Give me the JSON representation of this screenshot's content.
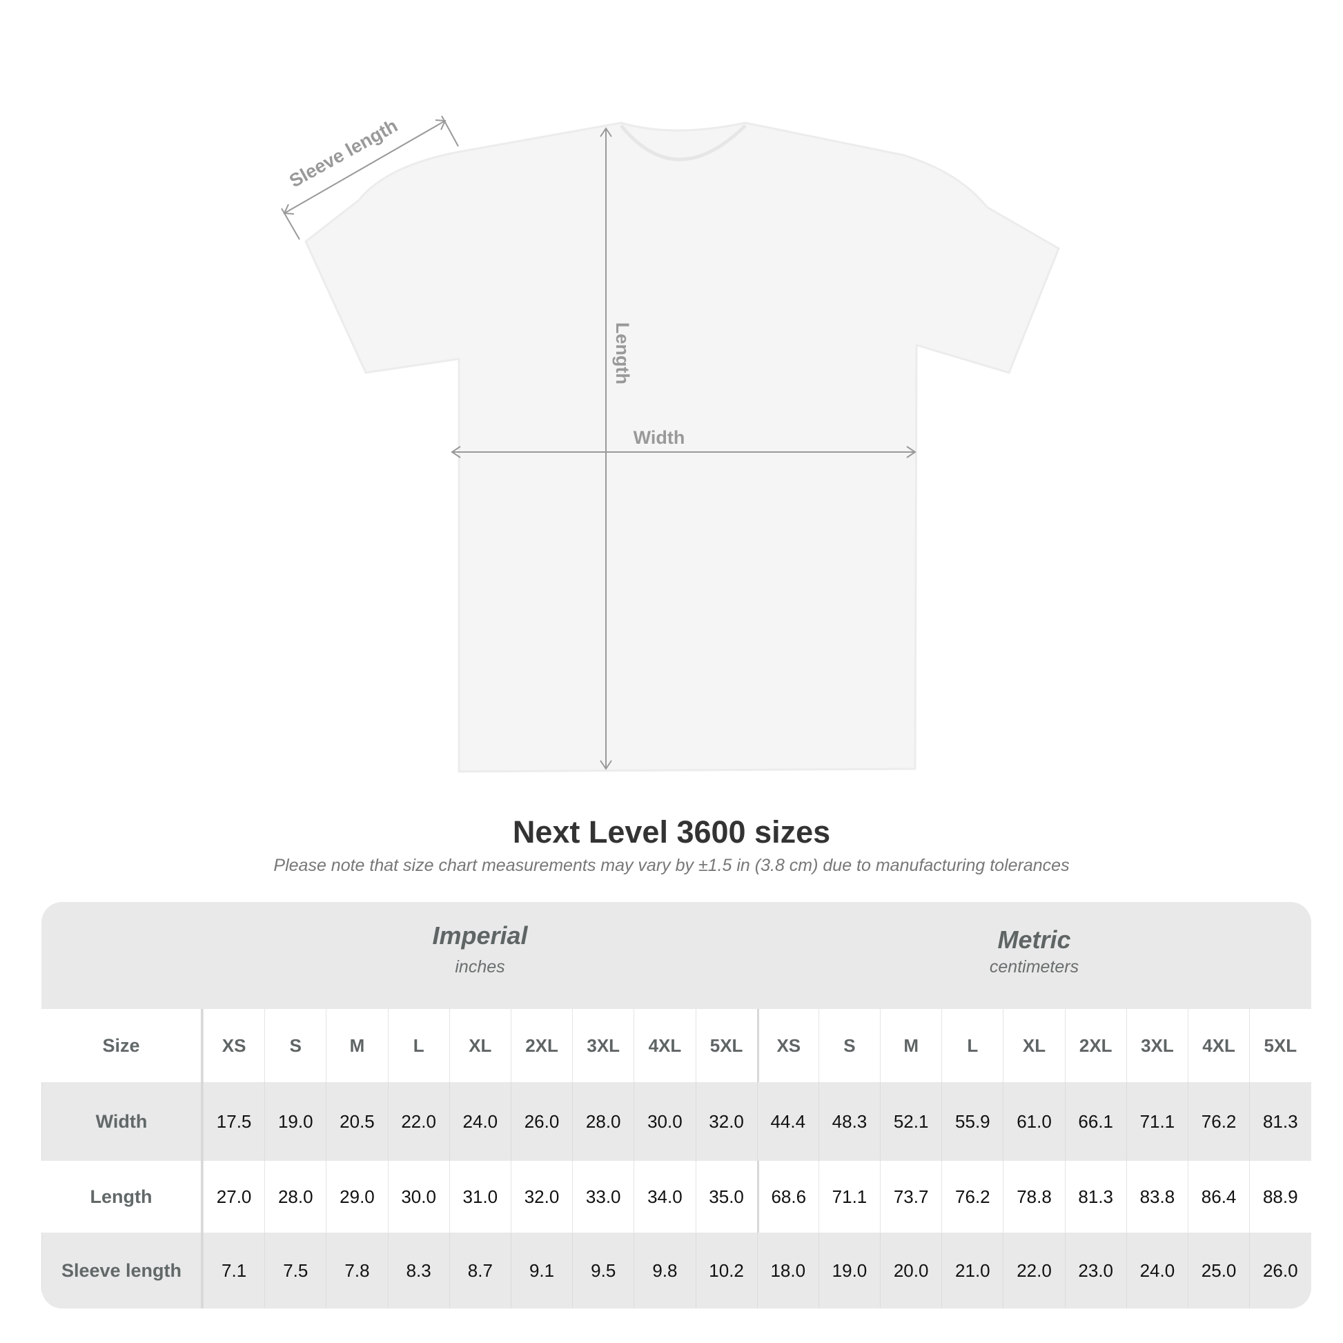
{
  "diagram": {
    "sleeve_label": "Sleeve length",
    "length_label": "Length",
    "width_label": "Width"
  },
  "title": "Next Level 3600 sizes",
  "subtitle": "Please note that size chart measurements may vary by ±1.5 in (3.8 cm) due to manufacturing tolerances",
  "systems": [
    {
      "name": "Imperial",
      "unit": "inches"
    },
    {
      "name": "Metric",
      "unit": "centimeters"
    }
  ],
  "size_label": "Size",
  "sizes": [
    "XS",
    "S",
    "M",
    "L",
    "XL",
    "2XL",
    "3XL",
    "4XL",
    "5XL"
  ],
  "rows": [
    {
      "label": "Width",
      "imperial": [
        "17.5",
        "19.0",
        "20.5",
        "22.0",
        "24.0",
        "26.0",
        "28.0",
        "30.0",
        "32.0"
      ],
      "metric": [
        "44.4",
        "48.3",
        "52.1",
        "55.9",
        "61.0",
        "66.1",
        "71.1",
        "76.2",
        "81.3"
      ]
    },
    {
      "label": "Length",
      "imperial": [
        "27.0",
        "28.0",
        "29.0",
        "30.0",
        "31.0",
        "32.0",
        "33.0",
        "34.0",
        "35.0"
      ],
      "metric": [
        "68.6",
        "71.1",
        "73.7",
        "76.2",
        "78.8",
        "81.3",
        "83.8",
        "86.4",
        "88.9"
      ]
    },
    {
      "label": "Sleeve length",
      "imperial": [
        "7.1",
        "7.5",
        "7.8",
        "8.3",
        "8.7",
        "9.1",
        "9.5",
        "9.8",
        "10.2"
      ],
      "metric": [
        "18.0",
        "19.0",
        "20.0",
        "21.0",
        "22.0",
        "23.0",
        "24.0",
        "25.0",
        "26.0"
      ]
    }
  ],
  "colors": {
    "header_bg": "#e9e9e9",
    "label_text": "#626868",
    "annotation": "#999999"
  }
}
